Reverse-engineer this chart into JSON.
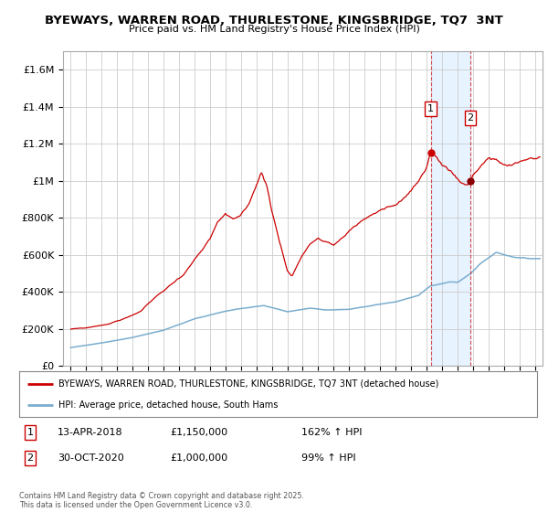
{
  "title1": "BYEWAYS, WARREN ROAD, THURLESTONE, KINGSBRIDGE, TQ7  3NT",
  "title2": "Price paid vs. HM Land Registry's House Price Index (HPI)",
  "red_line_color": "#cc0000",
  "blue_line_color": "#7aadcf",
  "marker1_x": 2018.28,
  "marker1_y": 1150000,
  "marker2_x": 2020.83,
  "marker2_y": 1000000,
  "highlight_color": "#ddeeff",
  "vline_color": "#cc0000",
  "legend_red": "BYEWAYS, WARREN ROAD, THURLESTONE, KINGSBRIDGE, TQ7 3NT (detached house)",
  "legend_blue": "HPI: Average price, detached house, South Hams",
  "ann1_date": "13-APR-2018",
  "ann1_price": "£1,150,000",
  "ann1_hpi": "162% ↑ HPI",
  "ann2_date": "30-OCT-2020",
  "ann2_price": "£1,000,000",
  "ann2_hpi": "99% ↑ HPI",
  "footer": "Contains HM Land Registry data © Crown copyright and database right 2025.\nThis data is licensed under the Open Government Licence v3.0.",
  "ytick_labels": [
    "£0",
    "£200K",
    "£400K",
    "£600K",
    "£800K",
    "£1M",
    "£1.2M",
    "£1.4M",
    "£1.6M"
  ],
  "yticks": [
    0,
    200000,
    400000,
    600000,
    800000,
    1000000,
    1200000,
    1400000,
    1600000
  ],
  "ylim": [
    0,
    1700000
  ],
  "xlim": [
    1994.5,
    2025.5
  ]
}
